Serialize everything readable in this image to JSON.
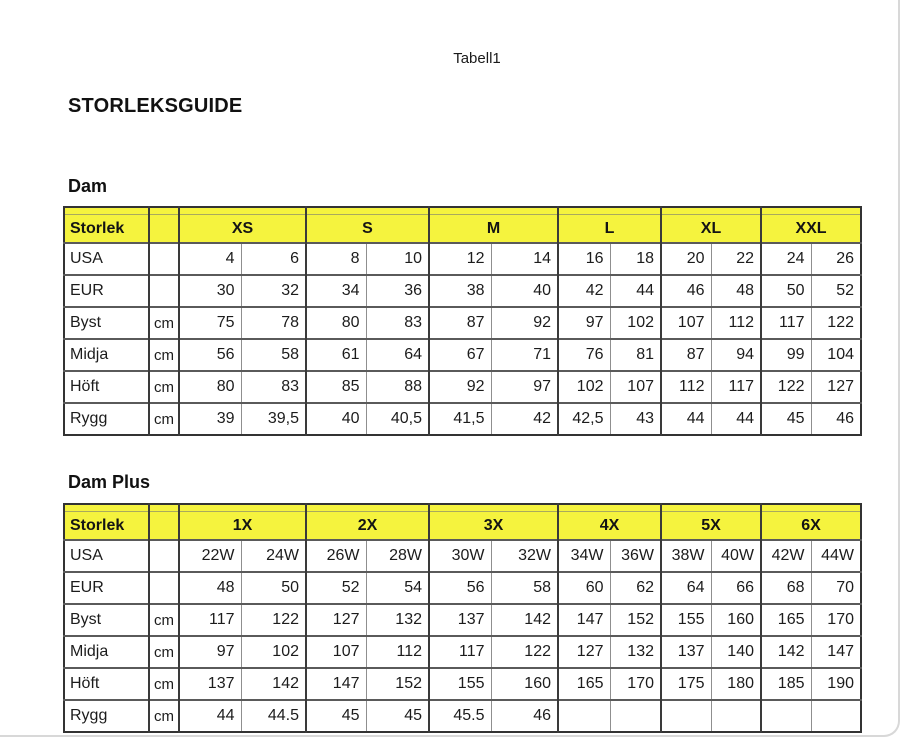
{
  "page": {
    "doc_label": "Tabell1",
    "title": "STORLEKSGUIDE"
  },
  "colors": {
    "header_yellow": "#f5f33e",
    "grid_dark": "#3a3a3a",
    "grid_light": "#8f8f8f"
  },
  "tables": [
    {
      "section_title": "Dam",
      "corner_label": "Storlek",
      "groups": [
        "XS",
        "S",
        "M",
        "L",
        "XL",
        "XXL"
      ],
      "rows": [
        {
          "label": "USA",
          "unit": "",
          "values": [
            "4",
            "6",
            "8",
            "10",
            "12",
            "14",
            "16",
            "18",
            "20",
            "22",
            "24",
            "26"
          ]
        },
        {
          "label": "EUR",
          "unit": "",
          "values": [
            "30",
            "32",
            "34",
            "36",
            "38",
            "40",
            "42",
            "44",
            "46",
            "48",
            "50",
            "52"
          ]
        },
        {
          "label": "Byst",
          "unit": "cm",
          "values": [
            "75",
            "78",
            "80",
            "83",
            "87",
            "92",
            "97",
            "102",
            "107",
            "112",
            "117",
            "122"
          ]
        },
        {
          "label": "Midja",
          "unit": "cm",
          "values": [
            "56",
            "58",
            "61",
            "64",
            "67",
            "71",
            "76",
            "81",
            "87",
            "94",
            "99",
            "104"
          ]
        },
        {
          "label": "Höft",
          "unit": "cm",
          "values": [
            "80",
            "83",
            "85",
            "88",
            "92",
            "97",
            "102",
            "107",
            "112",
            "117",
            "122",
            "127"
          ]
        },
        {
          "label": "Rygg",
          "unit": "cm",
          "values": [
            "39",
            "39,5",
            "40",
            "40,5",
            "41,5",
            "42",
            "42,5",
            "43",
            "44",
            "44",
            "45",
            "46"
          ]
        }
      ]
    },
    {
      "section_title": "Dam Plus",
      "corner_label": "Storlek",
      "groups": [
        "1X",
        "2X",
        "3X",
        "4X",
        "5X",
        "6X"
      ],
      "rows": [
        {
          "label": "USA",
          "unit": "",
          "values": [
            "22W",
            "24W",
            "26W",
            "28W",
            "30W",
            "32W",
            "34W",
            "36W",
            "38W",
            "40W",
            "42W",
            "44W"
          ]
        },
        {
          "label": "EUR",
          "unit": "",
          "values": [
            "48",
            "50",
            "52",
            "54",
            "56",
            "58",
            "60",
            "62",
            "64",
            "66",
            "68",
            "70"
          ]
        },
        {
          "label": "Byst",
          "unit": "cm",
          "values": [
            "117",
            "122",
            "127",
            "132",
            "137",
            "142",
            "147",
            "152",
            "155",
            "160",
            "165",
            "170"
          ]
        },
        {
          "label": "Midja",
          "unit": "cm",
          "values": [
            "97",
            "102",
            "107",
            "112",
            "117",
            "122",
            "127",
            "132",
            "137",
            "140",
            "142",
            "147"
          ]
        },
        {
          "label": "Höft",
          "unit": "cm",
          "values": [
            "137",
            "142",
            "147",
            "152",
            "155",
            "160",
            "165",
            "170",
            "175",
            "180",
            "185",
            "190"
          ]
        },
        {
          "label": "Rygg",
          "unit": "cm",
          "values": [
            "44",
            "44.5",
            "45",
            "45",
            "45.5",
            "46",
            "",
            "",
            "",
            "",
            "",
            ""
          ]
        }
      ]
    }
  ]
}
